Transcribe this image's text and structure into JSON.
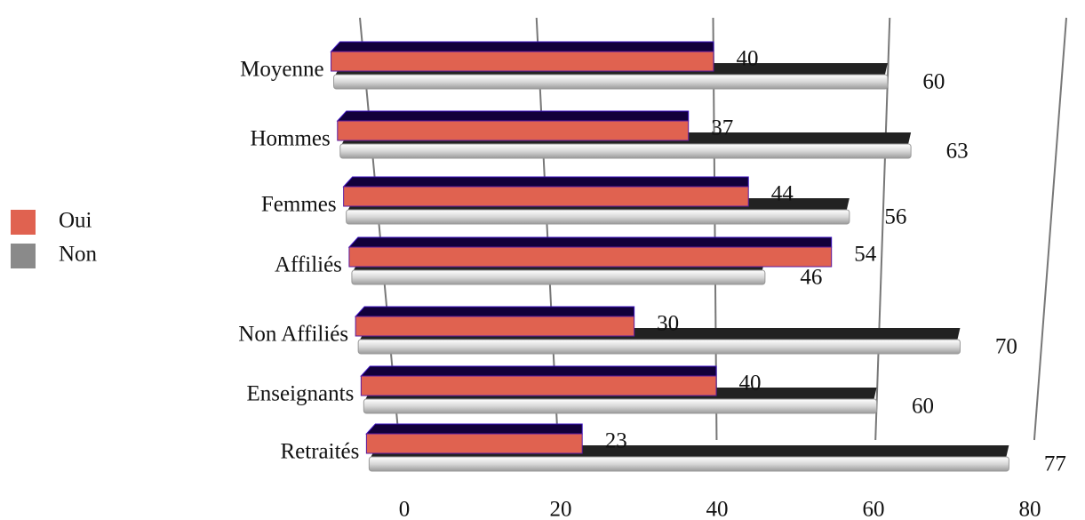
{
  "chart_data": {
    "type": "bar",
    "orientation": "horizontal",
    "categories": [
      "Moyenne",
      "Hommes",
      "Femmes",
      "Affiliés",
      "Non Affiliés",
      "Enseignants",
      "Retraités"
    ],
    "series": [
      {
        "name": "Oui",
        "color": "#e06250",
        "values": [
          40,
          37,
          44,
          54,
          30,
          40,
          23
        ]
      },
      {
        "name": "Non",
        "color": "#8a8a8a",
        "values": [
          60,
          63,
          56,
          46,
          70,
          60,
          77
        ]
      }
    ],
    "xlim": [
      0,
      80
    ],
    "xticks": [
      0,
      20,
      40,
      60,
      80
    ],
    "grid": true,
    "legend": "left"
  }
}
